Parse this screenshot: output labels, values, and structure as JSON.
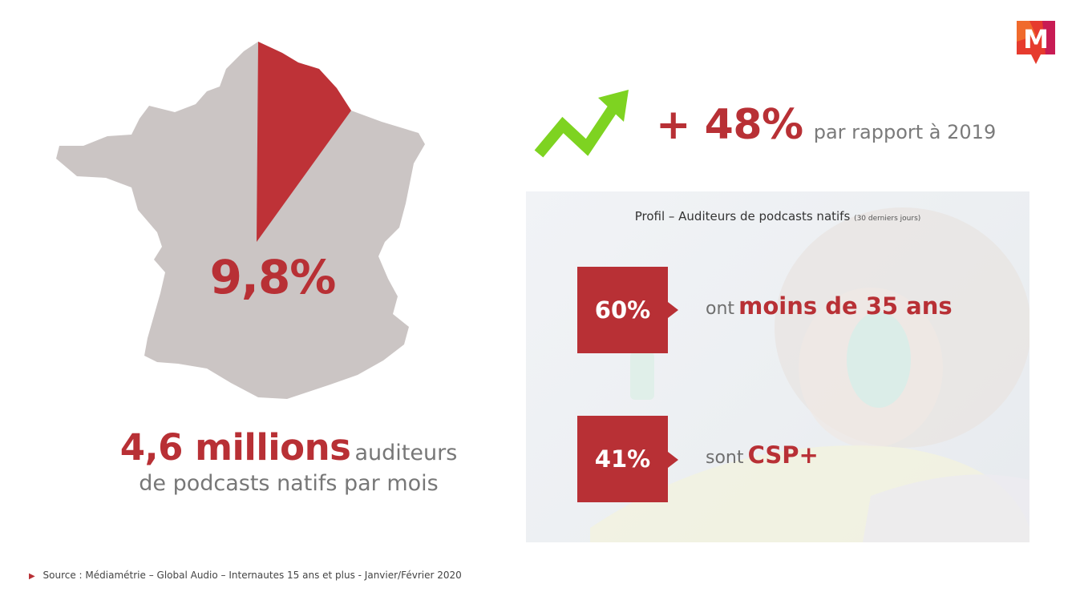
{
  "logo": {
    "letter": "M",
    "colors": {
      "primary": "#e63b2e",
      "secondary": "#c2185b",
      "accent": "#f06a2c"
    }
  },
  "map": {
    "percent": "9,8%",
    "highlight_color": "#be3237",
    "base_color": "#cbc5c4"
  },
  "audience": {
    "big": "4,6 millions",
    "small": "auditeurs",
    "line2": "de podcasts natifs par mois"
  },
  "growth": {
    "icon": "trend-up-arrow",
    "value": "+ 48%",
    "text": "par rapport à 2019",
    "arrow_color": "#7ed321"
  },
  "profile": {
    "title": "Profil – Auditeurs de podcasts natifs",
    "title_small": "(30 derniers jours)",
    "stats": [
      {
        "value": "60%",
        "prefix": "ont",
        "emphasis": "moins de 35 ans"
      },
      {
        "value": "41%",
        "prefix": "sont",
        "emphasis": "CSP+"
      }
    ]
  },
  "source": "Source : Médiamétrie – Global Audio – Internautes 15 ans et plus - Janvier/Février  2020"
}
